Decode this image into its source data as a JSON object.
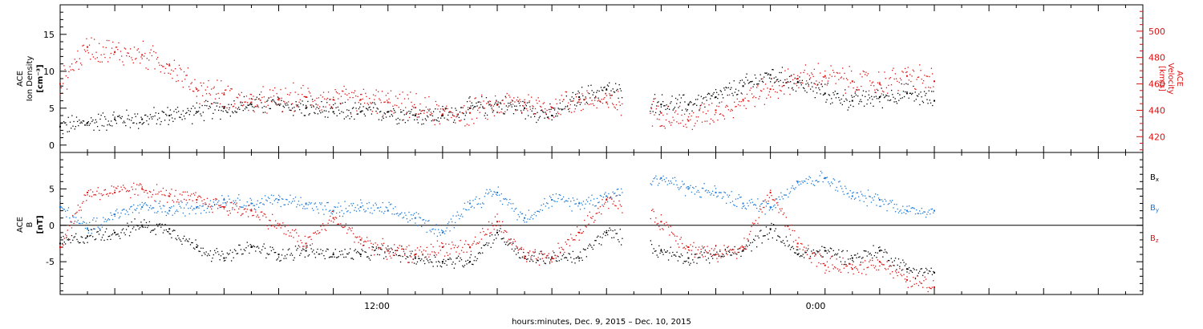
{
  "chart_data": [
    {
      "type": "scatter",
      "panel": "top",
      "ylabel_left": [
        "ACE",
        "Ion Density",
        "[cm⁻³]"
      ],
      "ylabel_right": [
        "ACE",
        "Velocity",
        "[km/s]"
      ],
      "ylim_left": [
        -1,
        19
      ],
      "ylim_right": [
        408,
        520
      ],
      "yticks_left": [
        "0",
        "5",
        "10",
        "15"
      ],
      "yticks_right": [
        "420",
        "440",
        "460",
        "480",
        "500"
      ],
      "x_hours_range": [
        0,
        32
      ],
      "data_gap_hours": [
        20.6,
        21.6
      ],
      "series": [
        {
          "name": "Ion Density",
          "axis": "left",
          "color": "#000000",
          "x": [
            0,
            1,
            2,
            3,
            4,
            5,
            6,
            7,
            8,
            9,
            10,
            11,
            12,
            13,
            14,
            15,
            16,
            17,
            18,
            19,
            20,
            22,
            23,
            24,
            25,
            26,
            27,
            28,
            29,
            30,
            31,
            32
          ],
          "y": [
            2.5,
            3,
            3.5,
            3.5,
            4,
            4.5,
            5,
            5.5,
            5.5,
            5,
            4.5,
            4.5,
            4.5,
            4,
            4,
            5,
            5.5,
            5,
            4,
            6.5,
            7.5,
            5.5,
            5.5,
            6.5,
            8,
            9.5,
            8.5,
            7,
            6,
            6.5,
            7,
            6
          ]
        },
        {
          "name": "Velocity",
          "axis": "right",
          "color": "#dd1111",
          "x": [
            0,
            1,
            2,
            3,
            4,
            5,
            6,
            7,
            8,
            9,
            10,
            11,
            12,
            13,
            14,
            15,
            16,
            17,
            18,
            19,
            20,
            22,
            23,
            24,
            25,
            26,
            27,
            28,
            29,
            30,
            31,
            32
          ],
          "y": [
            460,
            488,
            484,
            482,
            474,
            456,
            452,
            446,
            448,
            450,
            448,
            448,
            446,
            442,
            437,
            438,
            444,
            446,
            442,
            448,
            446,
            438,
            432,
            440,
            448,
            456,
            464,
            466,
            462,
            460,
            466,
            462
          ]
        }
      ]
    },
    {
      "type": "scatter",
      "panel": "bottom",
      "ylabel_left": [
        "ACE",
        "B",
        "[nT]"
      ],
      "ylim": [
        -9.5,
        10
      ],
      "yticks_left": [
        "-5",
        "0",
        "5"
      ],
      "legend_position": "right",
      "legend": [
        {
          "base": "B",
          "sub": "x",
          "color": "#000000"
        },
        {
          "base": "B",
          "sub": "y",
          "color": "#1a78d6"
        },
        {
          "base": "B",
          "sub": "z",
          "color": "#dd1111"
        }
      ],
      "x_hours_range": [
        0,
        32
      ],
      "data_gap_hours": [
        20.6,
        21.6
      ],
      "series": [
        {
          "name": "Bx",
          "color": "#000000",
          "x": [
            0,
            1,
            2,
            3,
            4,
            5,
            6,
            7,
            8,
            9,
            10,
            11,
            12,
            13,
            14,
            15,
            16,
            17,
            18,
            19,
            20,
            22,
            23,
            24,
            25,
            26,
            27,
            28,
            29,
            30,
            31,
            32
          ],
          "y": [
            -2.5,
            -1.5,
            -1,
            0,
            -0.5,
            -3,
            -4.5,
            -3,
            -4,
            -3.5,
            -4,
            -4,
            -3.5,
            -4.5,
            -5,
            -5,
            -1,
            -4.5,
            -4.5,
            -4.5,
            -1,
            -3.5,
            -4.5,
            -4,
            -3.5,
            -0.5,
            -4,
            -3.5,
            -4.5,
            -3.5,
            -6,
            -6.5
          ]
        },
        {
          "name": "By",
          "color": "#1a78d6",
          "x": [
            0,
            1,
            2,
            3,
            4,
            5,
            6,
            7,
            8,
            9,
            10,
            11,
            12,
            13,
            14,
            15,
            16,
            17,
            18,
            19,
            20,
            22,
            23,
            24,
            25,
            26,
            27,
            28,
            29,
            30,
            31,
            32
          ],
          "y": [
            2.5,
            -0.5,
            1.5,
            2.5,
            2,
            2.5,
            3.5,
            3,
            3.5,
            3,
            2,
            2.5,
            2,
            1,
            -1,
            3,
            4.5,
            1,
            3.5,
            3,
            4,
            6.5,
            5,
            4.5,
            3,
            2.5,
            6,
            6.5,
            4,
            3.5,
            2,
            2
          ]
        },
        {
          "name": "Bz",
          "color": "#dd1111",
          "x": [
            0,
            1,
            2,
            3,
            4,
            5,
            6,
            7,
            8,
            9,
            10,
            11,
            12,
            13,
            14,
            15,
            16,
            17,
            18,
            19,
            20,
            22,
            23,
            24,
            25,
            26,
            27,
            28,
            29,
            30,
            31,
            32
          ],
          "y": [
            -3,
            4.5,
            4.5,
            5,
            4,
            3.5,
            2.5,
            2,
            0,
            -2.5,
            1,
            -2,
            -3.5,
            -4,
            -3,
            -3,
            0.5,
            -4.5,
            -4.5,
            -1,
            3.5,
            0.5,
            -3,
            -4,
            -3,
            4.5,
            -2.5,
            -5.5,
            -6,
            -5,
            -7.5,
            -8.5
          ]
        }
      ]
    }
  ],
  "x_axis": {
    "tick_labels": [
      "12:00",
      "0:00"
    ],
    "tick_hours": [
      12,
      24
    ],
    "xlabel": "hours:minutes, Dec.  9, 2015 – Dec. 10, 2015"
  }
}
